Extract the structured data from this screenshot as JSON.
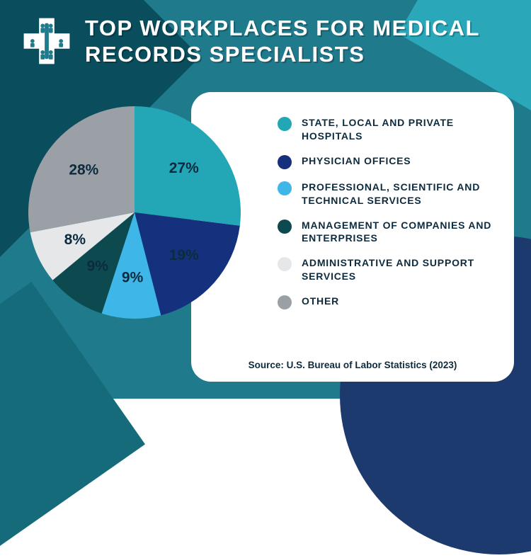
{
  "title": "TOP WORKPLACES FOR MEDICAL RECORDS SPECIALISTS",
  "source": "Source: U.S. Bureau of Labor Statistics (2023)",
  "background": {
    "base": "#1f7a8c",
    "shape1": "#0a4d5c",
    "shape2": "#1d3a6e",
    "shape3": "#2aa7b8",
    "shape4": "#166b7a"
  },
  "card_bg": "#ffffff",
  "text_color": "#0d2b3e",
  "title_fontsize": 31,
  "legend_fontsize": 14,
  "source_fontsize": 13.5,
  "slice_label_fontsize": 21,
  "chart": {
    "type": "pie",
    "radius": 150,
    "start_angle_deg": -90,
    "slices": [
      {
        "label": "STATE, LOCAL AND PRIVATE HOSPITALS",
        "value": 27,
        "display": "27%",
        "color": "#23a7b7"
      },
      {
        "label": "PHYSICIAN OFFICES",
        "value": 19,
        "display": "19%",
        "color": "#15317e"
      },
      {
        "label": "PROFESSIONAL, SCIENTIFIC AND TECHNICAL SERVICES",
        "value": 9,
        "display": "9%",
        "color": "#3fb6e8"
      },
      {
        "label": "MANAGEMENT OF COMPANIES AND ENTERPRISES",
        "value": 9,
        "display": "9%",
        "color": "#0d4a4f"
      },
      {
        "label": "ADMINISTRATIVE AND SUPPORT SERVICES",
        "value": 8,
        "display": "8%",
        "color": "#e6e7e8"
      },
      {
        "label": "OTHER",
        "value": 28,
        "display": "28%",
        "color": "#9aa0a6"
      }
    ]
  }
}
